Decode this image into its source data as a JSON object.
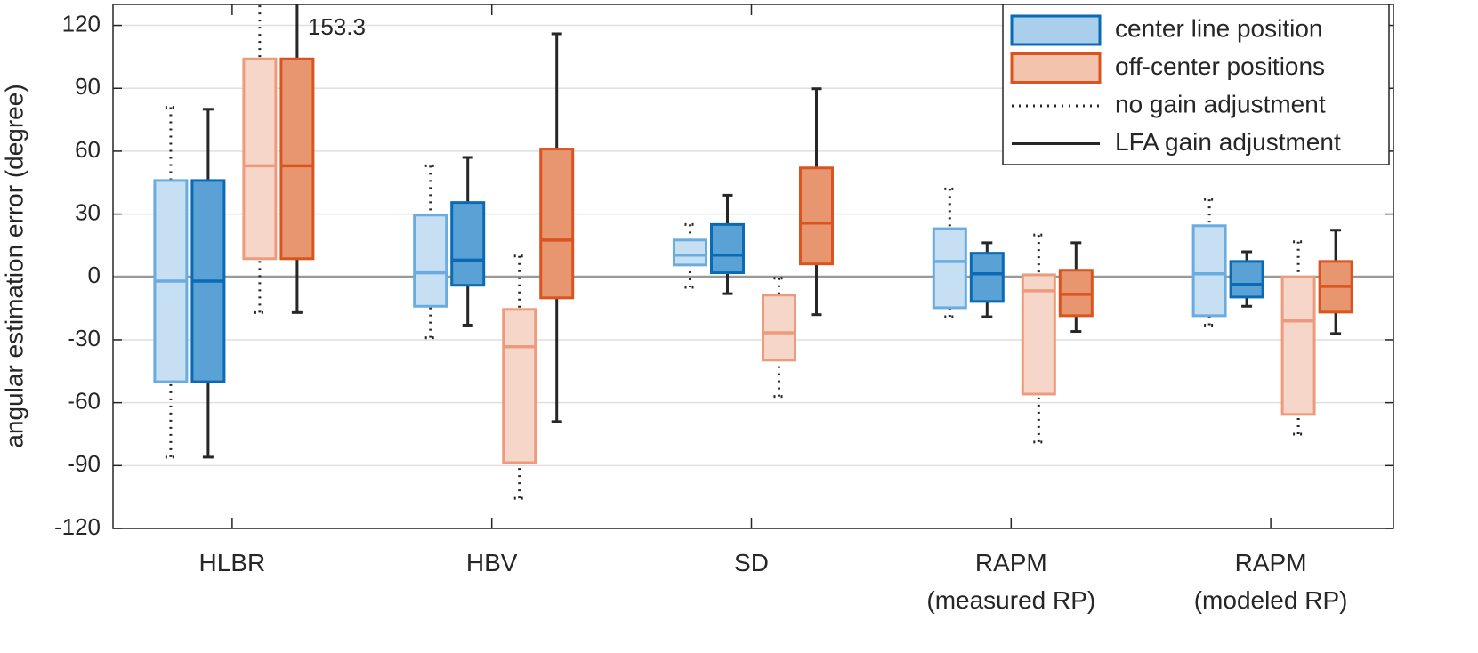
{
  "chart_data": {
    "type": "box",
    "ylabel": "angular estimation error (degree)",
    "categories": [
      "HLBR",
      "HBV",
      "SD",
      "RAPM\n(measured RP)",
      "RAPM\n(modeled RP)"
    ],
    "ylim": [
      -120,
      130
    ],
    "yticks": [
      -120,
      -90,
      -60,
      -30,
      0,
      30,
      60,
      90,
      120
    ],
    "grid": true,
    "hline": 0,
    "annotation": "153.3",
    "series": [
      {
        "color": "#6aacdf",
        "fill": "#c6dff2",
        "line_style": "dotted",
        "values": [
          [
            -86,
            -50,
            -2,
            46,
            81
          ],
          [
            -29,
            -14,
            2,
            29.5,
            53
          ],
          [
            -5,
            5.7,
            10.4,
            17.6,
            25
          ],
          [
            -19,
            -14.7,
            7.4,
            23,
            42
          ],
          [
            -23,
            -18.5,
            1.5,
            24.4,
            37
          ]
        ]
      },
      {
        "color": "#0a6ab4",
        "fill": "#5aa2d6",
        "line_style": "solid",
        "values": [
          [
            -86,
            -50,
            -2,
            46,
            80
          ],
          [
            -23,
            -4,
            8,
            35.5,
            57
          ],
          [
            -8,
            2,
            10.4,
            25,
            39
          ],
          [
            -19,
            -11.7,
            1.5,
            11.3,
            16.3
          ],
          [
            -14,
            -9.6,
            -3.6,
            7.4,
            12
          ]
        ]
      },
      {
        "color": "#ec9c7d",
        "fill": "#f6d6c9",
        "line_style": "dotted",
        "values": [
          [
            -17,
            8.7,
            53,
            104,
            153.3
          ],
          [
            -105.6,
            -88.6,
            -33.3,
            -15.5,
            10
          ],
          [
            -57,
            -39.7,
            -26.6,
            -8.7,
            -0.6
          ],
          [
            -78.8,
            -55.9,
            -6.6,
            1,
            20
          ],
          [
            -75,
            -65.6,
            -21,
            0,
            16.8
          ]
        ]
      },
      {
        "color": "#d9541e",
        "fill": "#e8966f",
        "line_style": "solid",
        "values": [
          [
            -17,
            8.7,
            53,
            104,
            153.3
          ],
          [
            -69,
            -10,
            17.6,
            61,
            116
          ],
          [
            -18,
            6.2,
            25.7,
            52,
            89.8
          ],
          [
            -26,
            -18.5,
            -8.3,
            3.2,
            16.3
          ],
          [
            -27,
            -16.8,
            -4.5,
            7.4,
            22.3
          ]
        ]
      }
    ],
    "legend": {
      "corner": "top-right",
      "entries": [
        {
          "name": "center line position",
          "color": "#0a6ab4",
          "fill": "#a9cfec"
        },
        {
          "name": "off-center positions",
          "color": "#d9541e",
          "fill": "#f4c3ae"
        },
        {
          "name": "no gain adjustment",
          "color": "#262626",
          "line_style": "dotted"
        },
        {
          "name": "LFA gain adjustment",
          "color": "#262626",
          "line_style": "solid"
        }
      ]
    }
  }
}
